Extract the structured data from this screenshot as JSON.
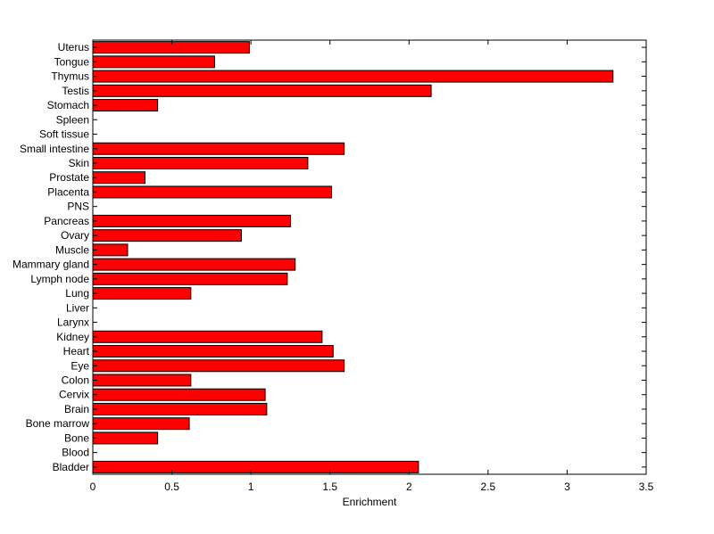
{
  "chart_data": {
    "type": "bar",
    "orientation": "horizontal",
    "title": "",
    "xlabel": "Enrichment",
    "ylabel": "",
    "xlim": [
      0,
      3.5
    ],
    "xticks": [
      0,
      0.5,
      1,
      1.5,
      2,
      2.5,
      3,
      3.5
    ],
    "xtick_labels": [
      "0",
      "0.5",
      "1",
      "1.5",
      "2",
      "2.5",
      "3",
      "3.5"
    ],
    "grid": false,
    "legend": "none",
    "bar_color": "#ff0000",
    "bar_edge_color": "#000000",
    "categories": [
      "Bladder",
      "Blood",
      "Bone",
      "Bone marrow",
      "Brain",
      "Cervix",
      "Colon",
      "Eye",
      "Heart",
      "Kidney",
      "Larynx",
      "Liver",
      "Lung",
      "Lymph node",
      "Mammary gland",
      "Muscle",
      "Ovary",
      "Pancreas",
      "PNS",
      "Placenta",
      "Prostate",
      "Skin",
      "Small intestine",
      "Soft tissue",
      "Spleen",
      "Stomach",
      "Testis",
      "Thymus",
      "Tongue",
      "Uterus"
    ],
    "values": [
      2.06,
      0,
      0.41,
      0.61,
      1.1,
      1.09,
      0.62,
      1.59,
      1.52,
      1.45,
      0,
      0,
      0.62,
      1.23,
      1.28,
      0.22,
      0.94,
      1.25,
      0,
      1.51,
      0.33,
      1.36,
      1.59,
      0,
      0,
      0.41,
      2.14,
      3.29,
      0.77,
      0.99
    ]
  }
}
